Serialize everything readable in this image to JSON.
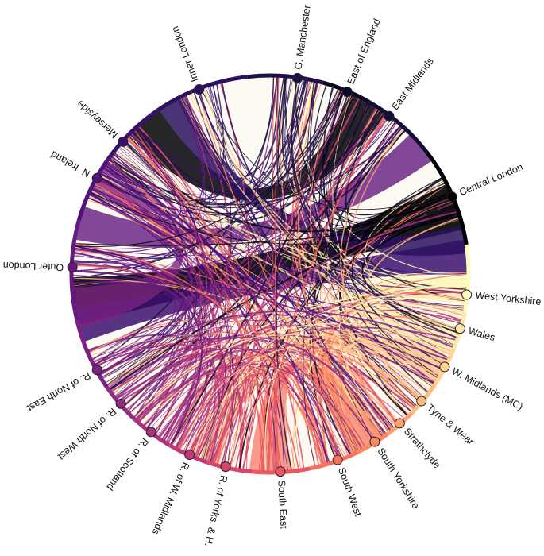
{
  "nodes": [
    {
      "label": "G. Manchester",
      "color": "#1d1147"
    },
    {
      "label": "East of England",
      "color": "#0b0924"
    },
    {
      "label": "East Midlands",
      "color": "#150e37"
    },
    {
      "label": "Central London",
      "color": "#000004"
    },
    {
      "label": "West Yorkshire",
      "color": "#fcfdbf"
    },
    {
      "label": "Wales",
      "color": "#fde8ab"
    },
    {
      "label": "W. Midlands (MC)",
      "color": "#fed395"
    },
    {
      "label": "Tyne & Wear",
      "color": "#febb81"
    },
    {
      "label": "Strathclyde",
      "color": "#fea16e"
    },
    {
      "label": "South Yorkshire",
      "color": "#fb8861"
    },
    {
      "label": "South West",
      "color": "#f7705c"
    },
    {
      "label": "South East",
      "color": "#ea5661"
    },
    {
      "label": "R. of Yorks. & H.",
      "color": "#d8456c"
    },
    {
      "label": "R. of W. Midlands",
      "color": "#c03a76"
    },
    {
      "label": "R. of Scotland",
      "color": "#a8327d"
    },
    {
      "label": "R. of North West",
      "color": "#912b81"
    },
    {
      "label": "R. of North East",
      "color": "#7a2382"
    },
    {
      "label": "Outer London",
      "color": "#641a80"
    },
    {
      "label": "N. Ireland",
      "color": "#4f127b"
    },
    {
      "label": "Merseyside",
      "color": "#3b0f70"
    },
    {
      "label": "Inner London",
      "color": "#2b115e"
    }
  ]
}
